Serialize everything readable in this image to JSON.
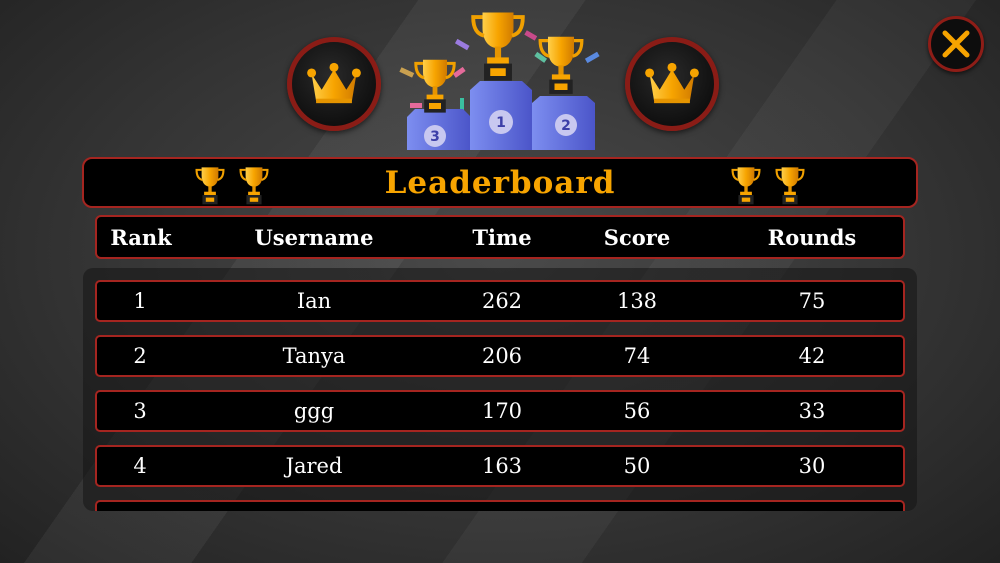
{
  "header": {
    "title": "Leaderboard"
  },
  "podium": {
    "places": [
      "1",
      "2",
      "3"
    ]
  },
  "table": {
    "columns": [
      "Rank",
      "Username",
      "Time",
      "Score",
      "Rounds"
    ],
    "rows": [
      [
        "1",
        "Ian",
        "262",
        "138",
        "75"
      ],
      [
        "2",
        "Tanya",
        "206",
        "74",
        "42"
      ],
      [
        "3",
        "ggg",
        "170",
        "56",
        "33"
      ],
      [
        "4",
        "Jared",
        "163",
        "50",
        "30"
      ]
    ]
  },
  "colors": {
    "accent": "#f7a400",
    "border": "#a52520",
    "background": "#3a3a3a"
  },
  "icons": {
    "close": "close-x-icon",
    "crown": "crown-icon",
    "trophy": "trophy-icon"
  }
}
